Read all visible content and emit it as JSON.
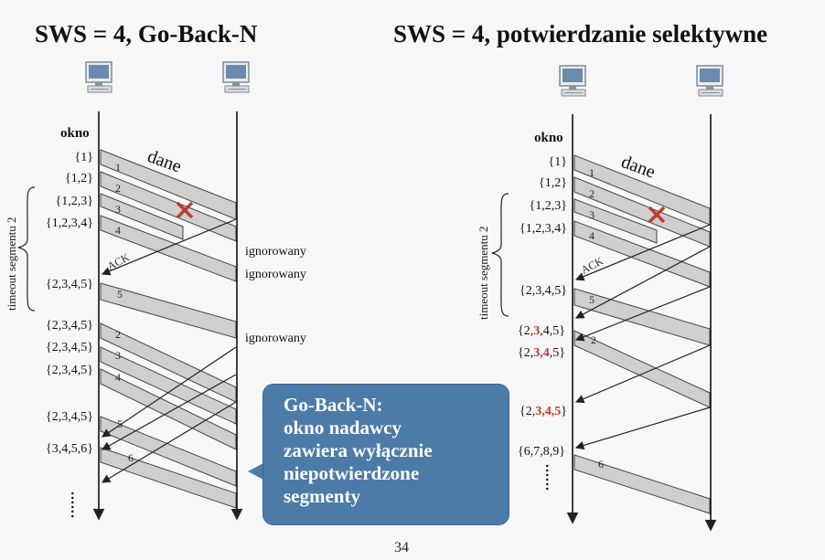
{
  "slide": {
    "title_left": "SWS = 4, Go-Back-N",
    "title_right": "SWS = 4, potwierdzanie selektywne",
    "page_number": "34"
  },
  "left_diagram": {
    "window_header": "okno",
    "data_label": "dane",
    "ack_label": "ACK",
    "timeout_label": "timeout  segmentu  2",
    "windows": [
      "{1}",
      "{1,2}",
      "{1,2,3}",
      "{1,2,3,4}",
      "{2,3,4,5}",
      "{2,3,4,5}",
      "{2,3,4,5}",
      "{2,3,4,5}",
      "{2,3,4,5}",
      "{3,4,5,6}"
    ],
    "segment_numbers": [
      "1",
      "2",
      "3",
      "4",
      "5",
      "2",
      "3",
      "4",
      "5",
      "6"
    ],
    "ignored_label": "ignorowany",
    "dots": "......"
  },
  "right_diagram": {
    "window_header": "okno",
    "data_label": "dane",
    "ack_label": "ACK",
    "timeout_label": "timeout  segmentu  2",
    "windows": [
      "{1}",
      "{1,2}",
      "{1,2,3}",
      "{1,2,3,4}",
      "{2,3,4,5}"
    ],
    "window_parts": {
      "w6_a": "{2,",
      "w6_b": "3",
      "w6_c": ",4,5}",
      "w7_a": "{2,",
      "w7_b": "3,4",
      "w7_c": ",5}",
      "w8_a": "{2,",
      "w8_b": "3,4,5",
      "w8_c": "}",
      "w9": "{6,7,8,9}"
    },
    "segment_numbers": [
      "1",
      "2",
      "3",
      "4",
      "5",
      "2",
      "6"
    ],
    "dots": "......"
  },
  "callout": {
    "line1": "Go-Back-N:",
    "line2": "okno nadawcy",
    "line3": "zawiera wyłącznie",
    "line4": "niepotwierdzone",
    "line5": "segmenty"
  },
  "colors": {
    "segment_band": "#cfcfcf",
    "highlight_red": "#c0392b",
    "callout_bg": "#4c7ba8",
    "loss_cross": "#b5402f"
  },
  "icons": [
    "computer-icon",
    "loss-x-icon"
  ]
}
